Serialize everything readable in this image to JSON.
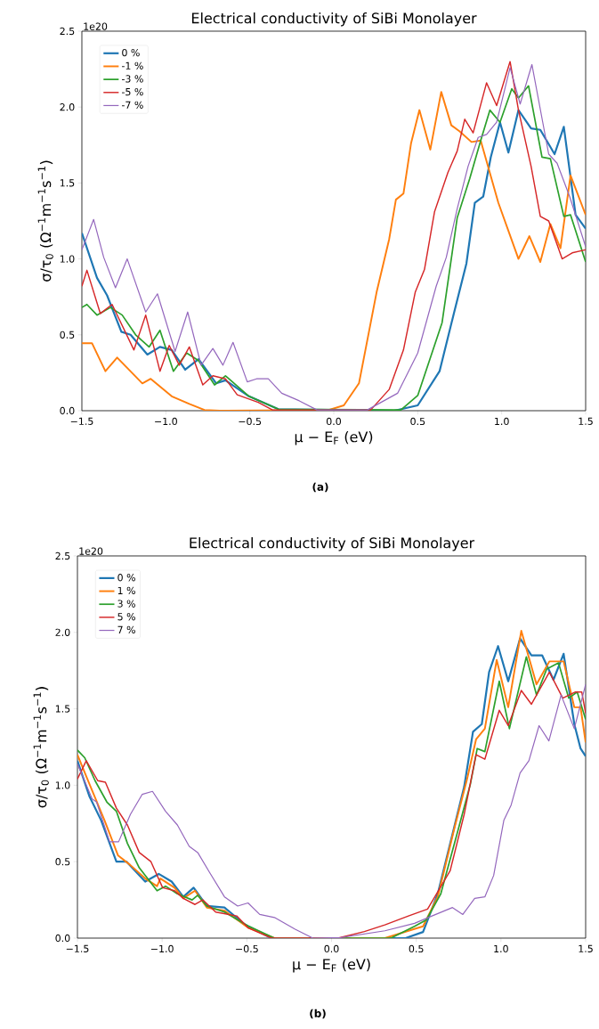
{
  "chart_data": [
    {
      "type": "line",
      "title": "Electrical conductivity of SiBi Monolayer",
      "xlabel": "μ − E$_{F}$ (eV)",
      "ylabel": "σ/τ$_{0}$ (Ω$^{−1}$m$^{−1}$s$^{−1}$)",
      "annotations": [
        "1e20",
        "(a)"
      ],
      "legend": "top left",
      "xlim": [
        -1.5,
        1.5
      ],
      "ylim": [
        0,
        2.5
      ],
      "xticks": [
        {
          "value": -1.5,
          "label": "−1.5"
        },
        {
          "value": -1.0,
          "label": "−1.0"
        },
        {
          "value": -0.5,
          "label": "−0.5"
        },
        {
          "value": 0.0,
          "label": "0.0"
        },
        {
          "value": 0.5,
          "label": "0.5"
        },
        {
          "value": 1.0,
          "label": "1.0"
        },
        {
          "value": 1.5,
          "label": "1.5"
        }
      ],
      "yticks": [
        {
          "value": 0,
          "label": "0.0"
        },
        {
          "value": 0.5,
          "label": "0.5"
        },
        {
          "value": 1.0,
          "label": "1.0"
        },
        {
          "value": 1.5,
          "label": "1.5"
        },
        {
          "value": 2.0,
          "label": "2.0"
        },
        {
          "value": 2.5,
          "label": "2.5"
        }
      ],
      "series": [
        {
          "name": "0 %",
          "color": "#1f77b4",
          "x": [
            -1.5,
            -1.41,
            -1.35,
            -1.265,
            -1.21,
            -1.11,
            -1.035,
            -0.965,
            -0.885,
            -0.805,
            -0.7,
            -0.645,
            -0.505,
            -0.33,
            0.36,
            0.5,
            0.63,
            0.715,
            0.79,
            0.84,
            0.89,
            0.935,
            0.99,
            1.04,
            1.1,
            1.175,
            1.23,
            1.315,
            1.37,
            1.44,
            1.5
          ],
          "values": [
            1.17,
            0.875,
            0.76,
            0.52,
            0.5,
            0.37,
            0.42,
            0.4,
            0.27,
            0.34,
            0.18,
            0.2,
            0.095,
            0.01,
            0.0,
            0.035,
            0.26,
            0.64,
            0.97,
            1.37,
            1.41,
            1.67,
            1.9,
            1.7,
            1.98,
            1.86,
            1.85,
            1.69,
            1.87,
            1.29,
            1.2
          ]
        },
        {
          "name": "-1 %",
          "color": "#ff7f0e",
          "x": [
            -1.5,
            -1.44,
            -1.36,
            -1.29,
            -1.14,
            -1.09,
            -0.965,
            -0.86,
            -0.77,
            -0.68,
            -0.03,
            0.06,
            0.15,
            0.255,
            0.33,
            0.37,
            0.415,
            0.46,
            0.51,
            0.575,
            0.64,
            0.7,
            0.75,
            0.82,
            0.875,
            0.98,
            1.1,
            1.165,
            1.23,
            1.29,
            1.35,
            1.41,
            1.5
          ],
          "values": [
            0.445,
            0.445,
            0.26,
            0.35,
            0.18,
            0.21,
            0.095,
            0.045,
            0.005,
            0.0,
            0.005,
            0.035,
            0.18,
            0.78,
            1.13,
            1.39,
            1.43,
            1.76,
            1.98,
            1.72,
            2.1,
            1.88,
            1.84,
            1.77,
            1.78,
            1.37,
            1.0,
            1.15,
            0.98,
            1.23,
            1.07,
            1.55,
            1.29
          ]
        },
        {
          "name": "-3 %",
          "color": "#2ca02c",
          "x": [
            -1.5,
            -1.47,
            -1.41,
            -1.33,
            -1.26,
            -1.18,
            -1.1,
            -1.035,
            -0.955,
            -0.876,
            -0.805,
            -0.71,
            -0.645,
            -0.505,
            -0.33,
            0.4,
            0.5,
            0.645,
            0.735,
            0.81,
            0.875,
            0.93,
            0.99,
            1.06,
            1.1,
            1.16,
            1.24,
            1.29,
            1.37,
            1.41,
            1.5
          ],
          "values": [
            0.68,
            0.7,
            0.63,
            0.68,
            0.63,
            0.5,
            0.42,
            0.53,
            0.26,
            0.38,
            0.33,
            0.17,
            0.23,
            0.095,
            0.01,
            0.005,
            0.1,
            0.58,
            1.27,
            1.53,
            1.78,
            1.98,
            1.9,
            2.12,
            2.06,
            2.14,
            1.67,
            1.66,
            1.28,
            1.29,
            0.98
          ]
        },
        {
          "name": "-5 %",
          "color": "#d62728",
          "x": [
            -1.5,
            -1.47,
            -1.39,
            -1.32,
            -1.19,
            -1.12,
            -1.035,
            -0.98,
            -0.92,
            -0.86,
            -0.78,
            -0.72,
            -0.645,
            -0.575,
            -0.45,
            -0.365,
            0.22,
            0.33,
            0.415,
            0.485,
            0.54,
            0.6,
            0.68,
            0.735,
            0.78,
            0.83,
            0.91,
            0.97,
            1.05,
            1.1,
            1.175,
            1.23,
            1.28,
            1.36,
            1.42,
            1.5
          ],
          "values": [
            0.82,
            0.925,
            0.64,
            0.7,
            0.4,
            0.63,
            0.26,
            0.43,
            0.3,
            0.42,
            0.17,
            0.23,
            0.21,
            0.105,
            0.055,
            0.005,
            0.005,
            0.14,
            0.4,
            0.78,
            0.93,
            1.31,
            1.57,
            1.71,
            1.92,
            1.83,
            2.16,
            2.01,
            2.3,
            1.98,
            1.61,
            1.28,
            1.25,
            1.0,
            1.04,
            1.06
          ]
        },
        {
          "name": "-7 %",
          "color": "#9467bd",
          "x": [
            -1.5,
            -1.43,
            -1.37,
            -1.3,
            -1.23,
            -1.12,
            -1.05,
            -0.945,
            -0.87,
            -0.79,
            -0.72,
            -0.66,
            -0.6,
            -0.515,
            -0.46,
            -0.39,
            -0.31,
            -0.205,
            -0.1,
            0.2,
            0.38,
            0.5,
            0.61,
            0.67,
            0.735,
            0.8,
            0.86,
            0.91,
            0.97,
            1.05,
            1.11,
            1.18,
            1.28,
            1.33,
            1.405,
            1.5
          ],
          "values": [
            1.06,
            1.26,
            1.01,
            0.81,
            1.0,
            0.65,
            0.77,
            0.39,
            0.65,
            0.3,
            0.41,
            0.3,
            0.45,
            0.19,
            0.21,
            0.21,
            0.115,
            0.065,
            0.005,
            0.005,
            0.115,
            0.38,
            0.82,
            1.01,
            1.33,
            1.61,
            1.8,
            1.82,
            1.9,
            2.26,
            2.02,
            2.28,
            1.69,
            1.63,
            1.41,
            1.08
          ]
        }
      ]
    },
    {
      "type": "line",
      "title": "Electrical conductivity of SiBi Monolayer",
      "xlabel": "μ − E$_{F}$ (eV)",
      "ylabel": "σ/τ$_{0}$ (Ω$^{−1}$m$^{−1}$s$^{−1}$)",
      "annotations": [
        "1e20",
        "(b)"
      ],
      "legend": "top left",
      "xlim": [
        -1.5,
        1.5
      ],
      "ylim": [
        0,
        2.5
      ],
      "xticks": [
        {
          "value": -1.5,
          "label": "−1.5"
        },
        {
          "value": -1.0,
          "label": "−1.0"
        },
        {
          "value": -0.5,
          "label": "−0.5"
        },
        {
          "value": 0.0,
          "label": "0.0"
        },
        {
          "value": 0.5,
          "label": "0.5"
        },
        {
          "value": 1.0,
          "label": "1.0"
        },
        {
          "value": 1.5,
          "label": "1.5"
        }
      ],
      "yticks": [
        {
          "value": 0,
          "label": "0.0"
        },
        {
          "value": 0.5,
          "label": "0.5"
        },
        {
          "value": 1.0,
          "label": "1.0"
        },
        {
          "value": 1.5,
          "label": "1.5"
        },
        {
          "value": 2.0,
          "label": "2.0"
        },
        {
          "value": 2.5,
          "label": "2.5"
        }
      ],
      "series": [
        {
          "name": "0 %",
          "color": "#1f77b4",
          "x": [
            -1.5,
            -1.43,
            -1.36,
            -1.27,
            -1.21,
            -1.1,
            -1.02,
            -0.944,
            -0.875,
            -0.814,
            -0.736,
            -0.632,
            -0.51,
            -0.354,
            0.437,
            0.54,
            0.627,
            0.714,
            0.783,
            0.835,
            0.887,
            0.93,
            0.983,
            1.043,
            1.113,
            1.18,
            1.243,
            1.31,
            1.37,
            1.433,
            1.47,
            1.5
          ],
          "values": [
            1.16,
            0.93,
            0.77,
            0.5,
            0.5,
            0.37,
            0.42,
            0.37,
            0.27,
            0.33,
            0.21,
            0.2,
            0.087,
            0.0,
            0.0,
            0.04,
            0.29,
            0.68,
            0.99,
            1.35,
            1.4,
            1.74,
            1.91,
            1.68,
            1.96,
            1.85,
            1.85,
            1.69,
            1.86,
            1.4,
            1.24,
            1.19
          ]
        },
        {
          "name": "1 %",
          "color": "#ff7f0e",
          "x": [
            -1.5,
            -1.43,
            -1.34,
            -1.26,
            -1.19,
            -1.1,
            -1.03,
            -1.01,
            -0.927,
            -0.875,
            -0.806,
            -0.736,
            -0.632,
            -0.493,
            -0.337,
            0.315,
            0.54,
            0.627,
            0.73,
            0.8,
            0.853,
            0.905,
            0.975,
            1.043,
            1.12,
            1.21,
            1.286,
            1.37,
            1.433,
            1.47,
            1.5
          ],
          "values": [
            1.2,
            1.01,
            0.77,
            0.54,
            0.48,
            0.39,
            0.34,
            0.39,
            0.33,
            0.26,
            0.31,
            0.2,
            0.18,
            0.068,
            0.0,
            0.0,
            0.077,
            0.27,
            0.74,
            1.04,
            1.3,
            1.37,
            1.82,
            1.51,
            2.01,
            1.66,
            1.81,
            1.81,
            1.51,
            1.51,
            1.28
          ]
        },
        {
          "name": "3 %",
          "color": "#2ca02c",
          "x": [
            -1.5,
            -1.457,
            -1.396,
            -1.326,
            -1.27,
            -1.205,
            -1.135,
            -1.03,
            -0.98,
            -0.91,
            -0.823,
            -0.79,
            -0.736,
            -0.632,
            -0.493,
            -0.337,
            0.35,
            0.49,
            0.56,
            0.645,
            0.75,
            0.82,
            0.86,
            0.905,
            0.99,
            1.05,
            1.15,
            1.21,
            1.27,
            1.34,
            1.4,
            1.45,
            1.5
          ],
          "values": [
            1.23,
            1.18,
            1.03,
            0.89,
            0.83,
            0.62,
            0.46,
            0.31,
            0.34,
            0.29,
            0.25,
            0.28,
            0.21,
            0.17,
            0.08,
            0.0,
            0.0,
            0.077,
            0.12,
            0.29,
            0.72,
            1.01,
            1.24,
            1.22,
            1.68,
            1.37,
            1.84,
            1.59,
            1.76,
            1.8,
            1.57,
            1.61,
            1.43
          ]
        },
        {
          "name": "5 %",
          "color": "#d62728",
          "x": [
            -1.5,
            -1.448,
            -1.38,
            -1.335,
            -1.27,
            -1.205,
            -1.135,
            -1.066,
            -0.997,
            -0.927,
            -0.875,
            -0.806,
            -0.76,
            -0.684,
            -0.56,
            -0.493,
            -0.354,
            0.038,
            0.194,
            0.315,
            0.454,
            0.567,
            0.7,
            0.783,
            0.853,
            0.905,
            0.99,
            1.043,
            1.12,
            1.18,
            1.286,
            1.365,
            1.44,
            1.477,
            1.5
          ],
          "values": [
            1.04,
            1.16,
            1.03,
            1.02,
            0.85,
            0.74,
            0.56,
            0.5,
            0.33,
            0.31,
            0.26,
            0.22,
            0.25,
            0.17,
            0.145,
            0.068,
            0.0,
            0.0,
            0.043,
            0.087,
            0.145,
            0.19,
            0.44,
            0.81,
            1.2,
            1.17,
            1.49,
            1.39,
            1.62,
            1.53,
            1.74,
            1.57,
            1.61,
            1.61,
            1.47
          ]
        },
        {
          "name": "7 %",
          "color": "#9467bd",
          "x": [
            -1.5,
            -1.413,
            -1.387,
            -1.31,
            -1.257,
            -1.187,
            -1.118,
            -1.057,
            -0.98,
            -0.91,
            -0.84,
            -0.79,
            -0.72,
            -0.632,
            -0.554,
            -0.493,
            -0.424,
            -0.337,
            -0.215,
            -0.11,
            0.055,
            0.315,
            0.49,
            0.593,
            0.714,
            0.775,
            0.845,
            0.905,
            0.957,
            1.017,
            1.06,
            1.113,
            1.165,
            1.225,
            1.283,
            1.355,
            1.433,
            1.5
          ],
          "values": [
            1.14,
            0.91,
            0.89,
            0.63,
            0.63,
            0.81,
            0.94,
            0.96,
            0.83,
            0.74,
            0.6,
            0.56,
            0.43,
            0.27,
            0.21,
            0.23,
            0.155,
            0.135,
            0.058,
            0.0,
            0.004,
            0.048,
            0.097,
            0.145,
            0.2,
            0.155,
            0.26,
            0.27,
            0.41,
            0.77,
            0.87,
            1.08,
            1.16,
            1.39,
            1.29,
            1.59,
            1.37,
            1.66
          ]
        }
      ]
    }
  ]
}
